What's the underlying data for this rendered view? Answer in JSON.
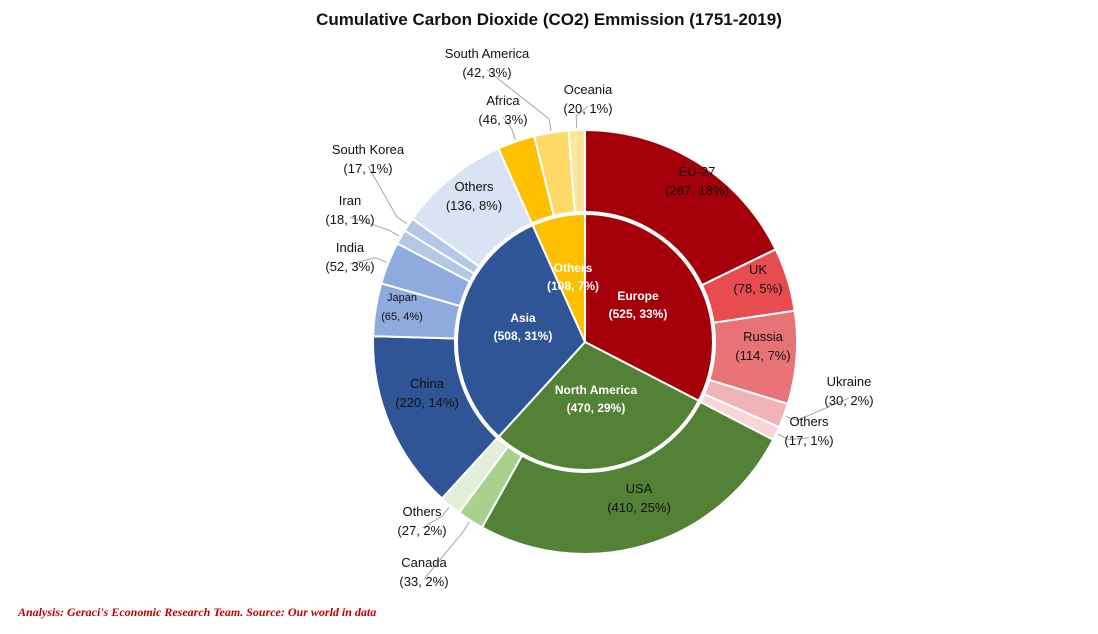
{
  "title": "Cumulative Carbon Dioxide (CO2) Emmission (1751-2019)",
  "footer": "Analysis: Geraci's Economic Research Team. Source: Our world in data",
  "chart_data": {
    "type": "sunburst",
    "units": "",
    "inner_ring": [
      {
        "name": "Europe",
        "value": 525,
        "share": "33%",
        "color": "#a50009"
      },
      {
        "name": "North America",
        "value": 470,
        "share": "29%",
        "color": "#538135"
      },
      {
        "name": "Asia",
        "value": 508,
        "share": "31%",
        "color": "#2f5597"
      },
      {
        "name": "Others",
        "value": 108,
        "share": "7%",
        "color": "#ffc000"
      }
    ],
    "outer_ring": [
      {
        "name": "EU-27",
        "parent": "Europe",
        "value": 287,
        "share": "18%",
        "color": "#a50009"
      },
      {
        "name": "UK",
        "parent": "Europe",
        "value": 78,
        "share": "5%",
        "color": "#e84c50"
      },
      {
        "name": "Russia",
        "parent": "Europe",
        "value": 114,
        "share": "7%",
        "color": "#e87377"
      },
      {
        "name": "Ukraine",
        "parent": "Europe",
        "value": 30,
        "share": "2%",
        "color": "#f0b3b9"
      },
      {
        "name": "Others",
        "parent": "Europe",
        "value": 17,
        "share": "1%",
        "color": "#f8d5d9"
      },
      {
        "name": "USA",
        "parent": "North America",
        "value": 410,
        "share": "25%",
        "color": "#538135"
      },
      {
        "name": "Canada",
        "parent": "North America",
        "value": 33,
        "share": "2%",
        "color": "#a9d18e"
      },
      {
        "name": "Others",
        "parent": "North America",
        "value": 27,
        "share": "2%",
        "color": "#e2efd9"
      },
      {
        "name": "China",
        "parent": "Asia",
        "value": 220,
        "share": "14%",
        "color": "#2f5597"
      },
      {
        "name": "Japan",
        "parent": "Asia",
        "value": 65,
        "share": "4%",
        "color": "#8faadc"
      },
      {
        "name": "India",
        "parent": "Asia",
        "value": 52,
        "share": "3%",
        "color": "#8faadc"
      },
      {
        "name": "Iran",
        "parent": "Asia",
        "value": 18,
        "share": "1%",
        "color": "#b4c7e7"
      },
      {
        "name": "South Korea",
        "parent": "Asia",
        "value": 17,
        "share": "1%",
        "color": "#b4c7e7"
      },
      {
        "name": "Others",
        "parent": "Asia",
        "value": 136,
        "share": "8%",
        "color": "#dae3f3"
      },
      {
        "name": "Africa",
        "parent": "Others",
        "value": 46,
        "share": "3%",
        "color": "#ffc000"
      },
      {
        "name": "South America",
        "parent": "Others",
        "value": 42,
        "share": "3%",
        "color": "#ffd966"
      },
      {
        "name": "Oceania",
        "parent": "Others",
        "value": 20,
        "share": "1%",
        "color": "#ffe699"
      }
    ]
  }
}
